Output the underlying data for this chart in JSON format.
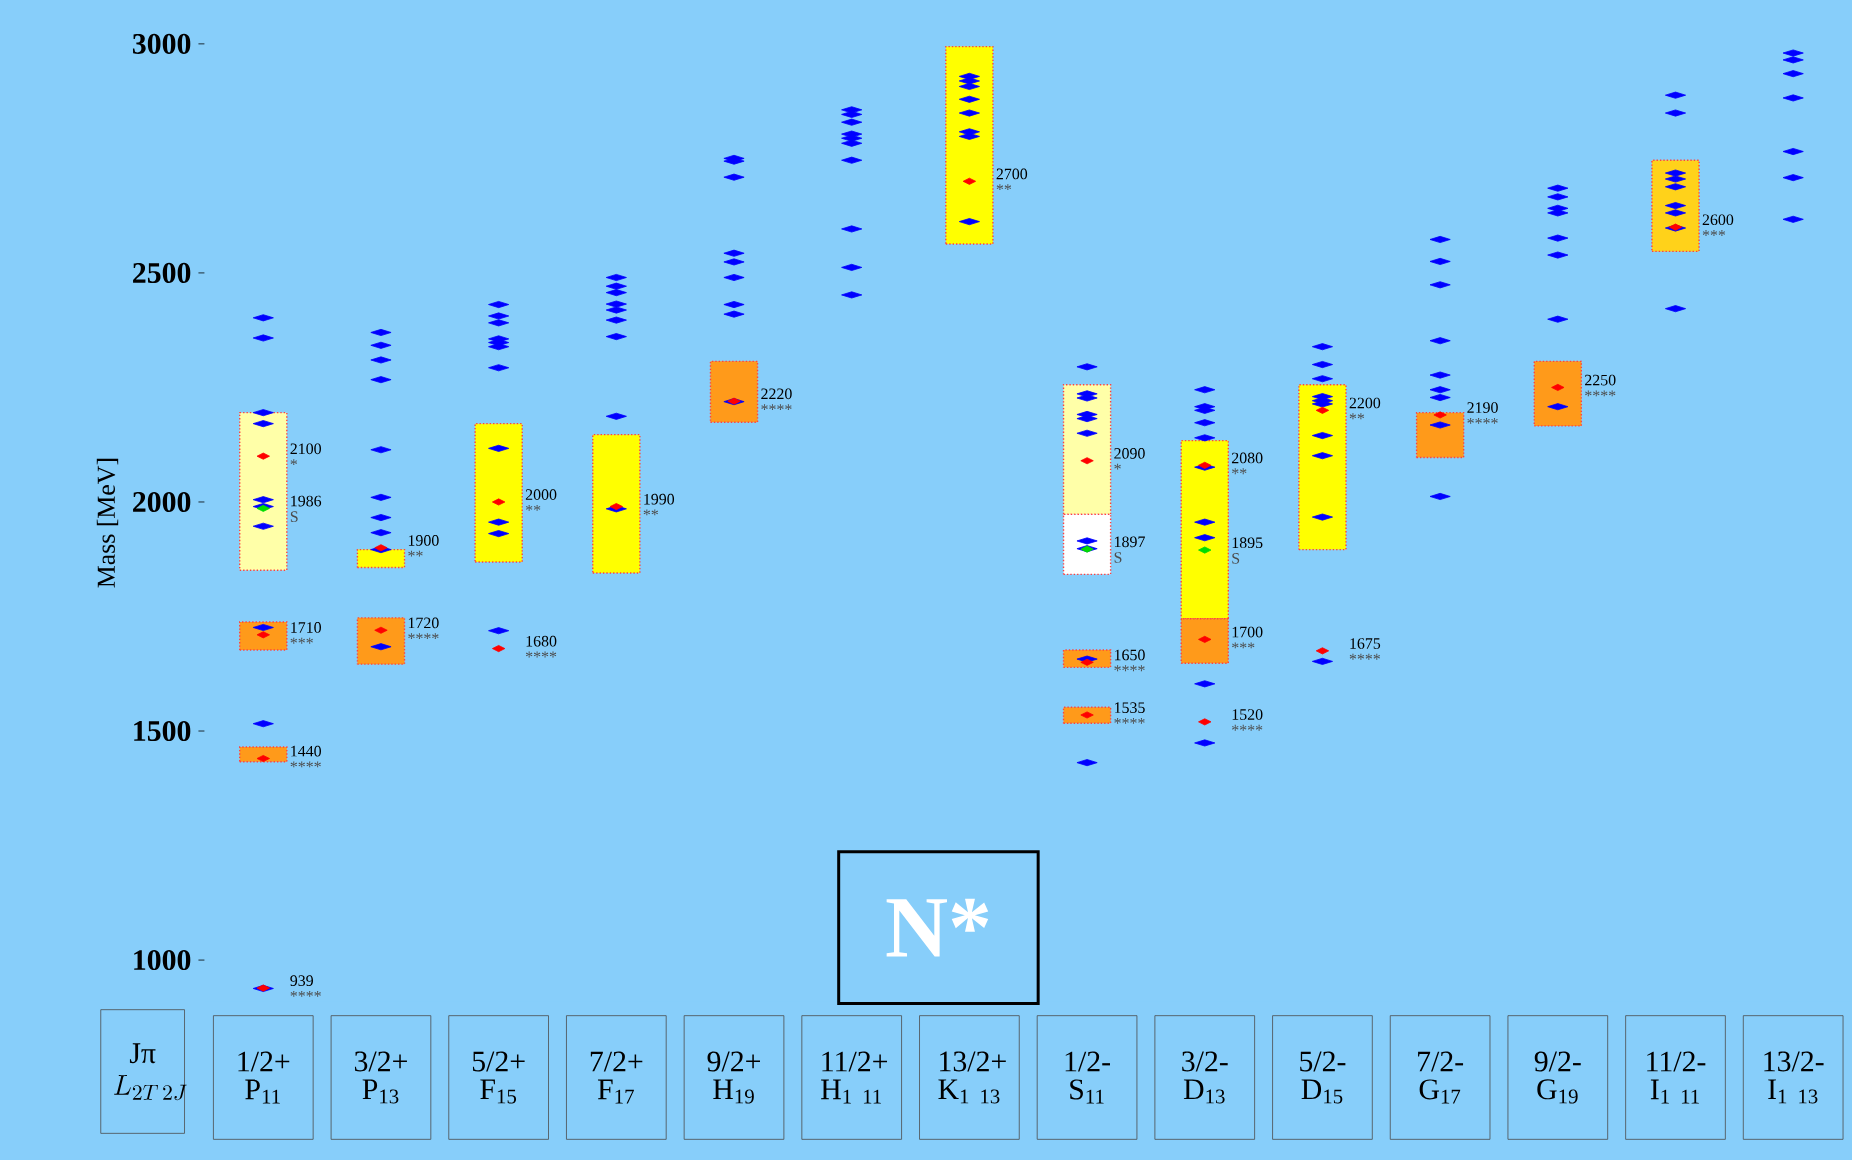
{
  "chart_data": {
    "type": "scatter",
    "marker": "diamond",
    "title": "N*",
    "ylabel": "Mass [MeV]",
    "categories": [
      "1/2+ P$_{11}$",
      "3/2+ P$_{13}$",
      "5/2+ F$_{15}$",
      "7/2+ F$_{17}$",
      "9/2+ H$_{19}$",
      "11/2+ H$_{1 11}$",
      "13/2+ K$_{1 13}$",
      "1/2- S$_{11}$",
      "3/2- D$_{13}$",
      "5/2- D$_{15}$",
      "7/2- G$_{17}$",
      "9/2- G$_{19}$",
      "11/2- I$_{1 11}$",
      "13/2- I$_{1 13}$"
    ],
    "ylim": [
      910,
      3000
    ],
    "yticks": [
      1000,
      1500,
      2000,
      2500,
      3000
    ],
    "series": [
      {
        "color": "#0000ff",
        "x": [
          "1/2+ P$_{11}$",
          "1/2+ P$_{11}$",
          "1/2+ P$_{11}$",
          "1/2+ P$_{11}$",
          "1/2+ P$_{11}$",
          "1/2+ P$_{11}$",
          "1/2+ P$_{11}$",
          "1/2+ P$_{11}$",
          "1/2+ P$_{11}$",
          "1/2+ P$_{11}$",
          "3/2+ P$_{13}$",
          "3/2+ P$_{13}$",
          "3/2+ P$_{13}$",
          "3/2+ P$_{13}$",
          "3/2+ P$_{13}$",
          "3/2+ P$_{13}$",
          "3/2+ P$_{13}$",
          "3/2+ P$_{13}$",
          "3/2+ P$_{13}$",
          "3/2+ P$_{13}$",
          "5/2+ F$_{15}$",
          "5/2+ F$_{15}$",
          "5/2+ F$_{15}$",
          "5/2+ F$_{15}$",
          "5/2+ F$_{15}$",
          "5/2+ F$_{15}$",
          "5/2+ F$_{15}$",
          "5/2+ F$_{15}$",
          "5/2+ F$_{15}$",
          "5/2+ F$_{15}$",
          "5/2+ F$_{15}$",
          "7/2+ F$_{17}$",
          "7/2+ F$_{17}$",
          "7/2+ F$_{17}$",
          "7/2+ F$_{17}$",
          "7/2+ F$_{17}$",
          "7/2+ F$_{17}$",
          "7/2+ F$_{17}$",
          "7/2+ F$_{17}$",
          "7/2+ F$_{17}$",
          "9/2+ H$_{19}$",
          "9/2+ H$_{19}$",
          "9/2+ H$_{19}$",
          "9/2+ H$_{19}$",
          "9/2+ H$_{19}$",
          "9/2+ H$_{19}$",
          "9/2+ H$_{19}$",
          "9/2+ H$_{19}$",
          "9/2+ H$_{19}$",
          "11/2+ H$_{1 11}$",
          "11/2+ H$_{1 11}$",
          "11/2+ H$_{1 11}$",
          "11/2+ H$_{1 11}$",
          "11/2+ H$_{1 11}$",
          "11/2+ H$_{1 11}$",
          "11/2+ H$_{1 11}$",
          "11/2+ H$_{1 11}$",
          "11/2+ H$_{1 11}$",
          "11/2+ H$_{1 11}$",
          "13/2+ K$_{1 13}$",
          "13/2+ K$_{1 13}$",
          "13/2+ K$_{1 13}$",
          "13/2+ K$_{1 13}$",
          "13/2+ K$_{1 13}$",
          "13/2+ K$_{1 13}$",
          "13/2+ K$_{1 13}$",
          "13/2+ K$_{1 13}$",
          "1/2- S$_{11}$",
          "1/2- S$_{11}$",
          "1/2- S$_{11}$",
          "1/2- S$_{11}$",
          "1/2- S$_{11}$",
          "1/2- S$_{11}$",
          "1/2- S$_{11}$",
          "1/2- S$_{11}$",
          "1/2- S$_{11}$",
          "1/2- S$_{11}$",
          "3/2- D$_{13}$",
          "3/2- D$_{13}$",
          "3/2- D$_{13}$",
          "3/2- D$_{13}$",
          "3/2- D$_{13}$",
          "3/2- D$_{13}$",
          "3/2- D$_{13}$",
          "3/2- D$_{13}$",
          "3/2- D$_{13}$",
          "3/2- D$_{13}$",
          "5/2- D$_{15}$",
          "5/2- D$_{15}$",
          "5/2- D$_{15}$",
          "5/2- D$_{15}$",
          "5/2- D$_{15}$",
          "5/2- D$_{15}$",
          "5/2- D$_{15}$",
          "5/2- D$_{15}$",
          "5/2- D$_{15}$",
          "5/2- D$_{15}$",
          "7/2- G$_{17}$",
          "7/2- G$_{17}$",
          "7/2- G$_{17}$",
          "7/2- G$_{17}$",
          "7/2- G$_{17}$",
          "7/2- G$_{17}$",
          "7/2- G$_{17}$",
          "7/2- G$_{17}$",
          "7/2- G$_{17}$",
          "9/2- G$_{19}$",
          "9/2- G$_{19}$",
          "9/2- G$_{19}$",
          "9/2- G$_{19}$",
          "9/2- G$_{19}$",
          "9/2- G$_{19}$",
          "9/2- G$_{19}$",
          "9/2- G$_{19}$",
          "11/2- I$_{1 11}$",
          "11/2- I$_{1 11}$",
          "11/2- I$_{1 11}$",
          "11/2- I$_{1 11}$",
          "11/2- I$_{1 11}$",
          "11/2- I$_{1 11}$",
          "11/2- I$_{1 11}$",
          "11/2- I$_{1 11}$",
          "11/2- I$_{1 11}$",
          "13/2- I$_{1 13}$",
          "13/2- I$_{1 13}$",
          "13/2- I$_{1 13}$",
          "13/2- I$_{1 13}$",
          "13/2- I$_{1 13}$",
          "13/2- I$_{1 13}$",
          "13/2- I$_{1 13}$"
        ],
        "values": [
          938,
          1516,
          1726,
          1947,
          1990,
          2005,
          2171,
          2195,
          2358,
          2402,
          1684,
          1896,
          1933,
          1966,
          2010,
          2114,
          2267,
          2310,
          2342,
          2370,
          1719,
          1931,
          1956,
          2117,
          2293,
          2339,
          2348,
          2356,
          2391,
          2406,
          2431,
          1985,
          2187,
          2361,
          2397,
          2419,
          2432,
          2457,
          2471,
          2490,
          2219,
          2410,
          2431,
          2490,
          2524,
          2543,
          2709,
          2744,
          2750,
          2452,
          2512,
          2596,
          2746,
          2783,
          2794,
          2803,
          2829,
          2846,
          2856,
          2612,
          2798,
          2808,
          2849,
          2879,
          2907,
          2919,
          2929,
          1431,
          1657,
          1898,
          1915,
          2150,
          2182,
          2191,
          2227,
          2236,
          2295,
          1474,
          1603,
          1922,
          1956,
          2076,
          2140,
          2173,
          2200,
          2208,
          2245,
          1652,
          1967,
          2101,
          2145,
          2214,
          2221,
          2230,
          2269,
          2300,
          2339,
          2012,
          2168,
          2228,
          2245,
          2277,
          2352,
          2474,
          2525,
          2573,
          2208,
          2399,
          2539,
          2576,
          2631,
          2641,
          2666,
          2685,
          2422,
          2598,
          2631,
          2647,
          2688,
          2705,
          2718,
          2849,
          2888,
          2617,
          2708,
          2765,
          2882,
          2935,
          2965,
          2980
        ]
      },
      {
        "type": "bar",
        "x": [
          "1/2+ P$_{11}$",
          "1/2+ P$_{11}$",
          "1/2+ P$_{11}$",
          "3/2+ P$_{13}$",
          "3/2+ P$_{13}$",
          "5/2+ F$_{15}$",
          "7/2+ F$_{17}$",
          "9/2+ H$_{19}$",
          "13/2+ K$_{1 13}$",
          "1/2- S$_{11}$",
          "1/2- S$_{11}$",
          "1/2- S$_{11}$",
          "1/2- S$_{11}$",
          "3/2- D$_{13}$",
          "3/2- D$_{13}$",
          "5/2- D$_{15}$",
          "7/2- G$_{17}$",
          "9/2- G$_{19}$",
          "11/2- I$_{1 11}$"
        ],
        "base": [
          1851,
          1677,
          1433,
          1857,
          1646,
          1869,
          1845,
          2174,
          2563,
          1973,
          1842,
          1639,
          1517,
          1745,
          1648,
          1896,
          2097,
          2166,
          2547
        ],
        "values": [
          344,
          61,
          32,
          39,
          101,
          302,
          302,
          133,
          431,
          283,
          131,
          38,
          35,
          389,
          97,
          360,
          98,
          141,
          199
        ],
        "colors": [
          "#ffffa8",
          "#ff9a1a",
          "#ff9a1a",
          "#ffff00",
          "#ff9a1a",
          "#ffff00",
          "#ffff00",
          "#ff9a1a",
          "#ffff00",
          "#ffffa8",
          "#ffffff",
          "#ff9a1a",
          "#ff9a1a",
          "#ffff00",
          "#ff9a1a",
          "#ffff00",
          "#ff9a1a",
          "#ff9a1a",
          "#ffd21a"
        ]
      },
      {
        "color": "#ff0000",
        "x": [
          "1/2+ P$_{11}$",
          "1/2+ P$_{11}$",
          "1/2+ P$_{11}$",
          "1/2+ P$_{11}$",
          "3/2+ P$_{13}$",
          "3/2+ P$_{13}$",
          "5/2+ F$_{15}$",
          "5/2+ F$_{15}$",
          "7/2+ F$_{17}$",
          "9/2+ H$_{19}$",
          "13/2+ K$_{1 13}$",
          "1/2- S$_{11}$",
          "1/2- S$_{11}$",
          "1/2- S$_{11}$",
          "3/2- D$_{13}$",
          "3/2- D$_{13}$",
          "3/2- D$_{13}$",
          "5/2- D$_{15}$",
          "5/2- D$_{15}$",
          "7/2- G$_{17}$",
          "9/2- G$_{19}$",
          "11/2- I$_{1 11}$"
        ],
        "values": [
          2100,
          1710,
          1440,
          939,
          1900,
          1720,
          2000,
          1680,
          1990,
          2220,
          2700,
          2090,
          1650,
          1535,
          2080,
          1700,
          1520,
          2200,
          1675,
          2190,
          2250,
          2600
        ],
        "value_labels": [
          "2100",
          "1710",
          "1440",
          "939",
          "1900",
          "1720",
          "2000",
          "1680",
          "1990",
          "2220",
          "2700",
          "2090",
          "1650",
          "1535",
          "2080",
          "1700",
          "1520",
          "2200",
          "1675",
          "2190",
          "2250",
          "2600"
        ]
      },
      {
        "color": "#00dd00",
        "x": [
          "1/2+ P$_{11}$",
          "1/2- S$_{11}$",
          "3/2- D$_{13}$"
        ],
        "values": [
          1986,
          1897,
          1895
        ],
        "value_labels": [
          "1986",
          "1897",
          "1895"
        ]
      }
    ],
    "annotations": [
      "Jπ",
      "L_{2T\\,2J}",
      {
        "text": "*",
        "x": "1/2+ P$_{11}$",
        "y": 2100
      },
      {
        "text": "***",
        "x": "1/2+ P$_{11}$",
        "y": 1710
      },
      {
        "text": "****",
        "x": "1/2+ P$_{11}$",
        "y": 1440
      },
      {
        "text": "****",
        "x": "1/2+ P$_{11}$",
        "y": 939
      },
      {
        "text": "S",
        "x": "1/2+ P$_{11}$",
        "y": 1986
      },
      {
        "text": "**",
        "x": "3/2+ P$_{13}$",
        "y": 1900
      },
      {
        "text": "****",
        "x": "3/2+ P$_{13}$",
        "y": 1720
      },
      {
        "text": "**",
        "x": "5/2+ F$_{15}$",
        "y": 2000
      },
      {
        "text": "****",
        "x": "5/2+ F$_{15}$",
        "y": 1680
      },
      {
        "text": "**",
        "x": "7/2+ F$_{17}$",
        "y": 1990
      },
      {
        "text": "****",
        "x": "9/2+ H$_{19}$",
        "y": 2220
      },
      {
        "text": "**",
        "x": "13/2+ K$_{1 13}$",
        "y": 2700
      },
      {
        "text": "*",
        "x": "1/2- S$_{11}$",
        "y": 2090
      },
      {
        "text": "S",
        "x": "1/2- S$_{11}$",
        "y": 1897
      },
      {
        "text": "****",
        "x": "1/2- S$_{11}$",
        "y": 1650
      },
      {
        "text": "****",
        "x": "1/2- S$_{11}$",
        "y": 1535
      },
      {
        "text": "**",
        "x": "3/2- D$_{13}$",
        "y": 2080
      },
      {
        "text": "S",
        "x": "3/2- D$_{13}$",
        "y": 1895
      },
      {
        "text": "***",
        "x": "3/2- D$_{13}$",
        "y": 1700
      },
      {
        "text": "****",
        "x": "3/2- D$_{13}$",
        "y": 1520
      },
      {
        "text": "**",
        "x": "5/2- D$_{15}$",
        "y": 2200
      },
      {
        "text": "****",
        "x": "5/2- D$_{15}$",
        "y": 1675
      },
      {
        "text": "****",
        "x": "7/2- G$_{17}$",
        "y": 2190
      },
      {
        "text": "****",
        "x": "9/2- G$_{19}$",
        "y": 2250
      },
      {
        "text": "***",
        "x": "11/2- I$_{1 11}$",
        "y": 2600
      }
    ]
  }
}
